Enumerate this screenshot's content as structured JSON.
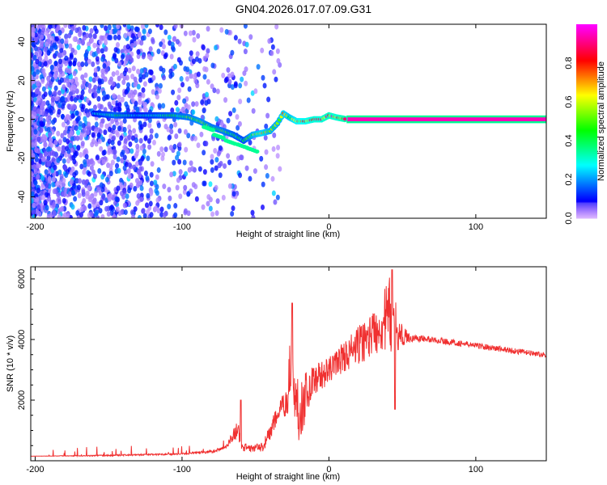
{
  "title": "GN04.2026.017.07.09.G31",
  "chart_data": [
    {
      "type": "heatmap",
      "xlabel": "Height of straight line (km)",
      "ylabel": "Frequency (Hz)",
      "xlim": [
        -203,
        148
      ],
      "ylim": [
        -51,
        49
      ],
      "xticks": [
        -200,
        -100,
        0,
        100
      ],
      "yticks": [
        -40,
        -20,
        0,
        20,
        40
      ],
      "colorbar": {
        "label": "Normalized spectral amplitude",
        "range": [
          0,
          1
        ],
        "ticks": [
          "0.0",
          "0.2",
          "0.4",
          "0.6",
          "0.8"
        ]
      },
      "ridge": [
        [
          -160,
          3,
          0.3
        ],
        [
          -145,
          2,
          0.45
        ],
        [
          -130,
          2,
          0.3
        ],
        [
          -115,
          2,
          0.4
        ],
        [
          -105,
          2,
          0.45
        ],
        [
          -95,
          1,
          0.5
        ],
        [
          -88,
          -1,
          0.55
        ],
        [
          -80,
          -4,
          0.5
        ],
        [
          -72,
          -6,
          0.5
        ],
        [
          -65,
          -8,
          0.45
        ],
        [
          -58,
          -11,
          0.4
        ],
        [
          -52,
          -8,
          0.6
        ],
        [
          -45,
          -7,
          0.7
        ],
        [
          -40,
          -6,
          0.6
        ],
        [
          -35,
          -2,
          0.6
        ],
        [
          -31,
          3,
          0.7
        ],
        [
          -27,
          1,
          0.65
        ],
        [
          -22,
          -1,
          0.75
        ],
        [
          -16,
          -1,
          0.8
        ],
        [
          -10,
          0,
          0.85
        ],
        [
          -5,
          0,
          0.85
        ],
        [
          0,
          2,
          0.9
        ],
        [
          5,
          1,
          0.85
        ],
        [
          12,
          0,
          0.95
        ],
        [
          40,
          0,
          0.95
        ],
        [
          148,
          0,
          0.95
        ]
      ],
      "secondary_ridge": [
        [
          -85,
          -4
        ],
        [
          -78,
          -8
        ],
        [
          -70,
          -11
        ],
        [
          -62,
          -13
        ],
        [
          -55,
          -15
        ]
      ]
    },
    {
      "type": "line",
      "xlabel": "Height of straight line (km)",
      "ylabel": "SNR (10 * v/v)",
      "xlim": [
        -203,
        148
      ],
      "ylim": [
        0,
        6400
      ],
      "xticks": [
        -200,
        -100,
        0,
        100
      ],
      "yticks": [
        2000,
        4000,
        6000
      ],
      "color": "#f03030",
      "envelope": [
        [
          -203,
          150,
          150
        ],
        [
          -150,
          150,
          200
        ],
        [
          -100,
          200,
          250
        ],
        [
          -80,
          250,
          350
        ],
        [
          -70,
          400,
          500
        ],
        [
          -62,
          700,
          1400
        ],
        [
          -60,
          300,
          800
        ],
        [
          -55,
          300,
          500
        ],
        [
          -45,
          300,
          600
        ],
        [
          -38,
          800,
          1500
        ],
        [
          -33,
          1500,
          2000
        ],
        [
          -29,
          1300,
          2500
        ],
        [
          -26,
          2000,
          4500
        ],
        [
          -24,
          1500,
          3000
        ],
        [
          -20,
          500,
          2800
        ],
        [
          -15,
          1500,
          3000
        ],
        [
          -10,
          2200,
          3200
        ],
        [
          0,
          2500,
          3400
        ],
        [
          5,
          2800,
          3700
        ],
        [
          15,
          3000,
          4200
        ],
        [
          25,
          3300,
          4700
        ],
        [
          35,
          3600,
          5300
        ],
        [
          42,
          3400,
          6200
        ],
        [
          48,
          3700,
          4600
        ],
        [
          55,
          3900,
          4200
        ],
        [
          70,
          3900,
          4100
        ],
        [
          100,
          3700,
          3900
        ],
        [
          130,
          3500,
          3700
        ],
        [
          148,
          3400,
          3550
        ]
      ],
      "spikes": [
        [
          -25,
          5200
        ],
        [
          -60,
          2000
        ],
        [
          43,
          6300
        ],
        [
          45,
          1700
        ]
      ]
    }
  ]
}
